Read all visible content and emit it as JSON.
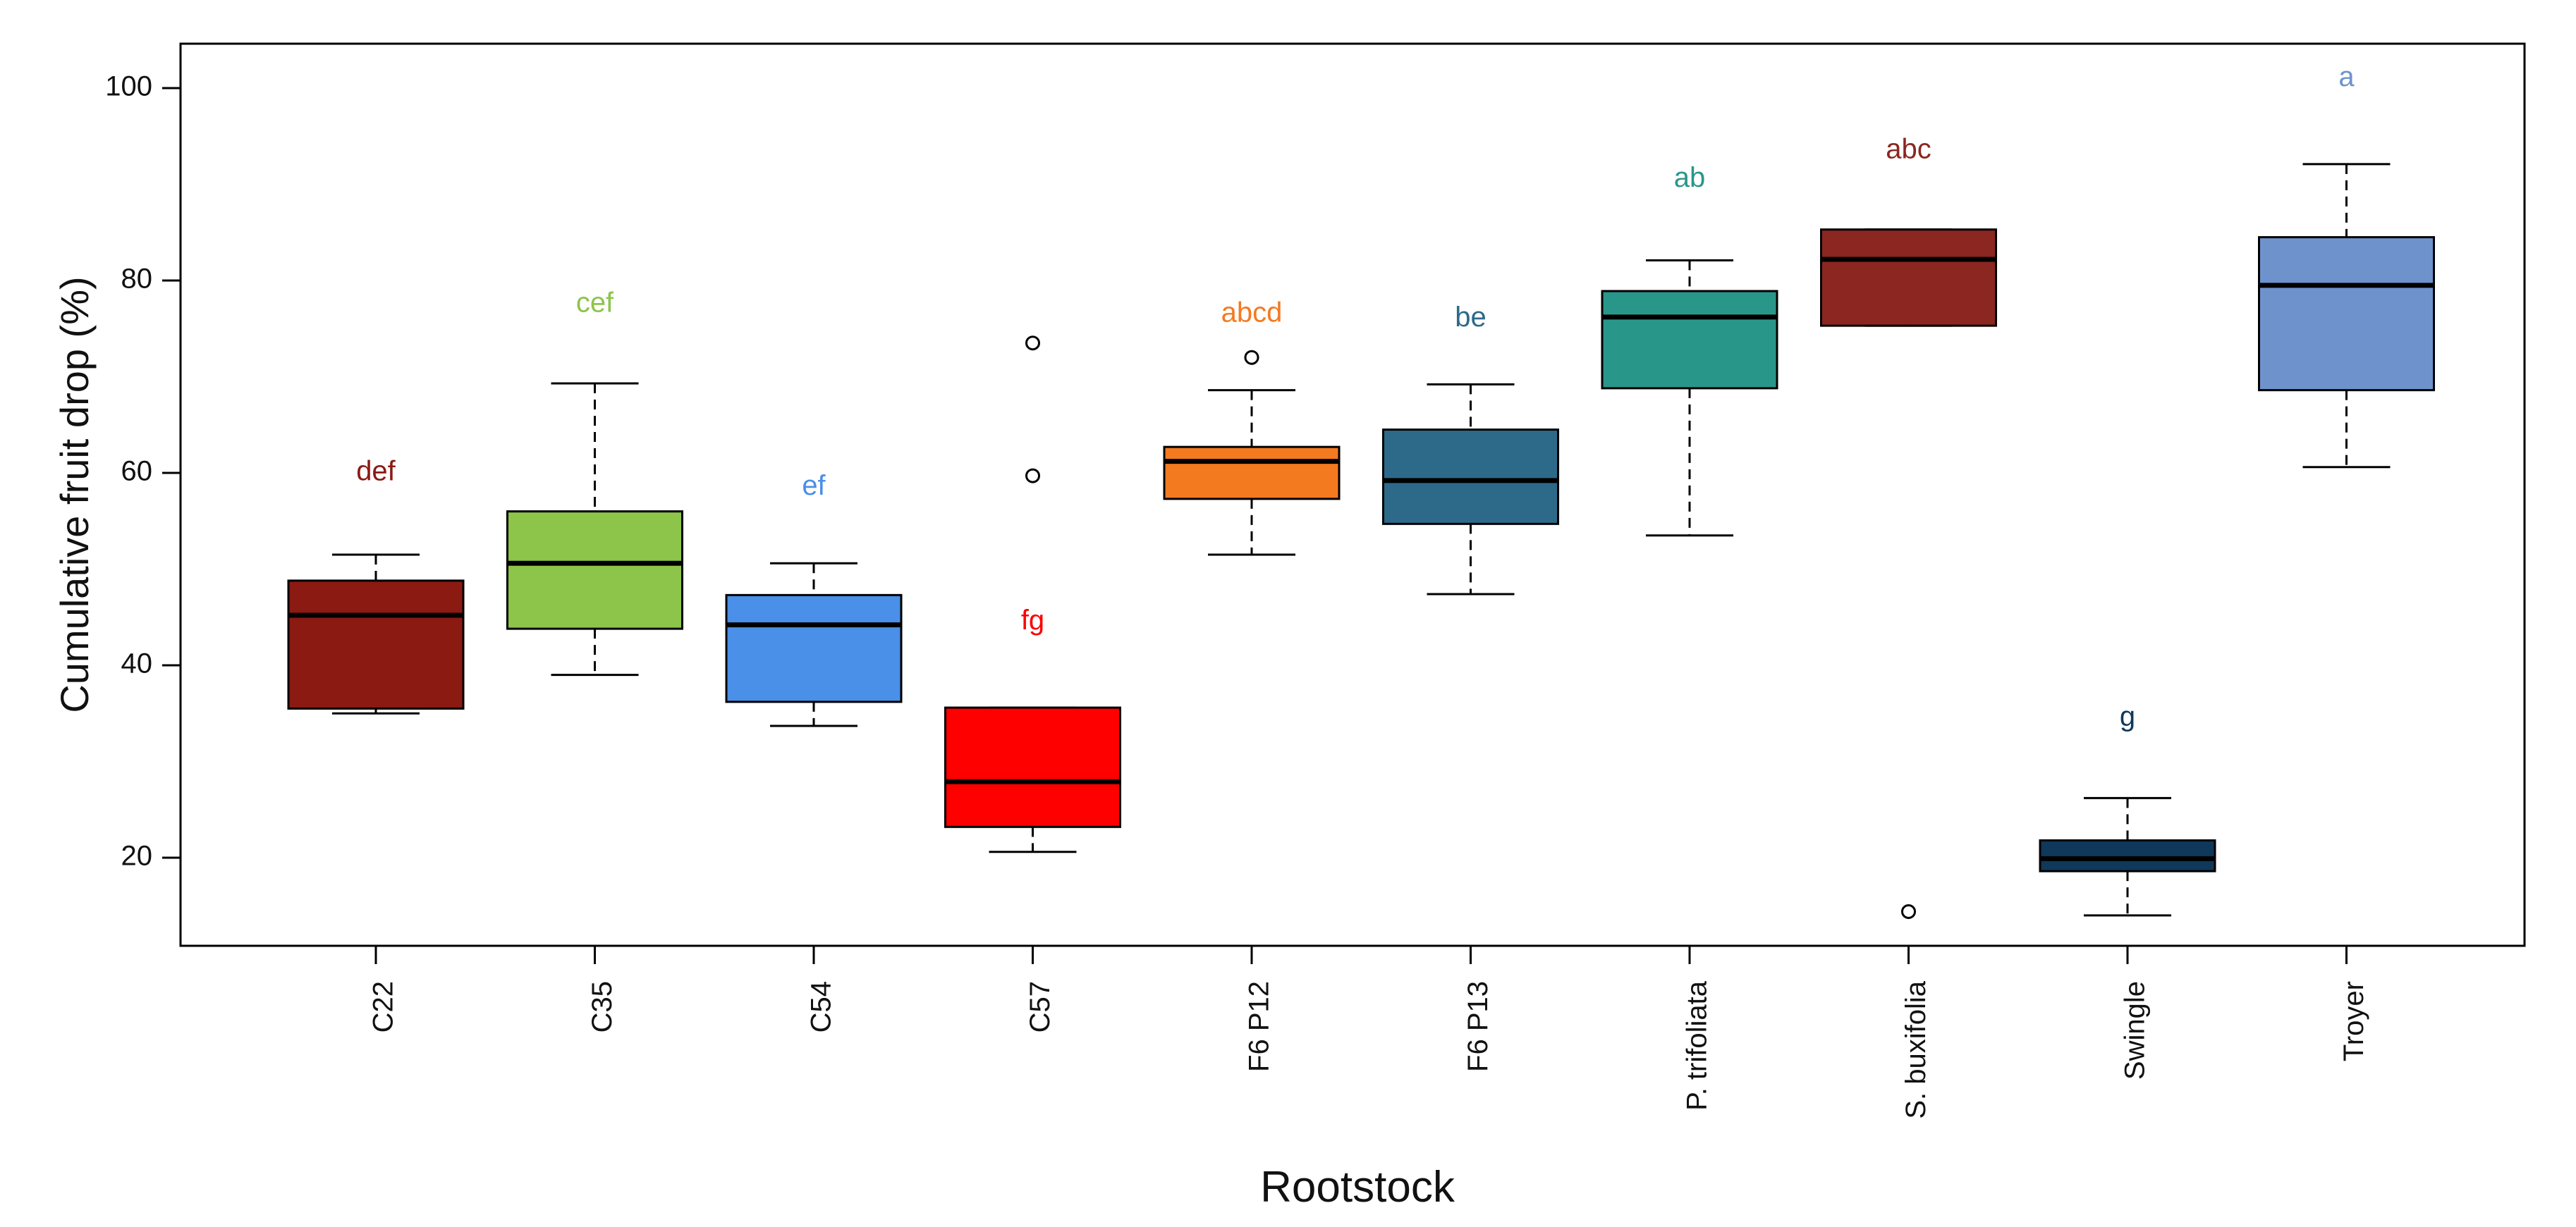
{
  "chart_data": {
    "type": "boxplot",
    "xlabel": "Rootstock",
    "ylabel": "Cumulative fruit drop (%)",
    "ylim": [
      10,
      104
    ],
    "yticks": [
      20,
      40,
      60,
      80,
      100
    ],
    "grid": false,
    "series": [
      {
        "category": "C22",
        "color": "#8b1a12",
        "label": "def",
        "label_y": 60,
        "whisker_low": 35,
        "q1": 35.5,
        "median": 45.2,
        "q3": 48.8,
        "whisker_high": 51.5,
        "outliers": []
      },
      {
        "category": "C35",
        "color": "#8dc44a",
        "label": "cef",
        "label_y": 77.5,
        "whisker_low": 39,
        "q1": 43.8,
        "median": 50.6,
        "q3": 56,
        "whisker_high": 69.3,
        "outliers": []
      },
      {
        "category": "C54",
        "color": "#4a8fe8",
        "label": "ef",
        "label_y": 58.5,
        "whisker_low": 33.7,
        "q1": 36.2,
        "median": 44.2,
        "q3": 47.3,
        "whisker_high": 50.6,
        "outliers": []
      },
      {
        "category": "C57",
        "color": "#ff0000",
        "label": "fg",
        "label_y": 44.5,
        "whisker_low": 20.6,
        "q1": 23.2,
        "median": 27.9,
        "q3": 35.6,
        "whisker_high": 35.6,
        "outliers": [
          59.7,
          73.5
        ]
      },
      {
        "category": "F6 P12",
        "color": "#f47a20",
        "label": "abcd",
        "label_y": 76.5,
        "whisker_low": 51.5,
        "q1": 57.3,
        "median": 61.2,
        "q3": 62.7,
        "whisker_high": 68.6,
        "outliers": [
          72
        ]
      },
      {
        "category": "F6 P13",
        "color": "#2d6a8a",
        "label": "be",
        "label_y": 76,
        "whisker_low": 47.4,
        "q1": 54.7,
        "median": 59.2,
        "q3": 64.5,
        "whisker_high": 69.2,
        "outliers": []
      },
      {
        "category": "P. trifoliata",
        "color": "#28978a",
        "label": "ab",
        "label_y": 90.5,
        "whisker_low": 53.5,
        "q1": 68.8,
        "median": 76.2,
        "q3": 78.9,
        "whisker_high": 82.1,
        "outliers": []
      },
      {
        "category": "S. buxifolia",
        "color": "#8b2620",
        "label": "abc",
        "label_y": 93.5,
        "whisker_low": 75.3,
        "q1": 75.3,
        "median": 82.2,
        "q3": 85.3,
        "whisker_high": 85.3,
        "outliers": [
          14.4
        ]
      },
      {
        "category": "Swingle",
        "color": "#10385a",
        "label": "g",
        "label_y": 34.5,
        "whisker_low": 14,
        "q1": 18.6,
        "median": 19.9,
        "q3": 21.8,
        "whisker_high": 26.2,
        "outliers": []
      },
      {
        "category": "Troyer",
        "color": "#6e93cc",
        "label": "a",
        "label_y": 101,
        "whisker_low": 60.6,
        "q1": 68.6,
        "median": 79.5,
        "q3": 84.5,
        "whisker_high": 92.1,
        "outliers": []
      }
    ]
  }
}
